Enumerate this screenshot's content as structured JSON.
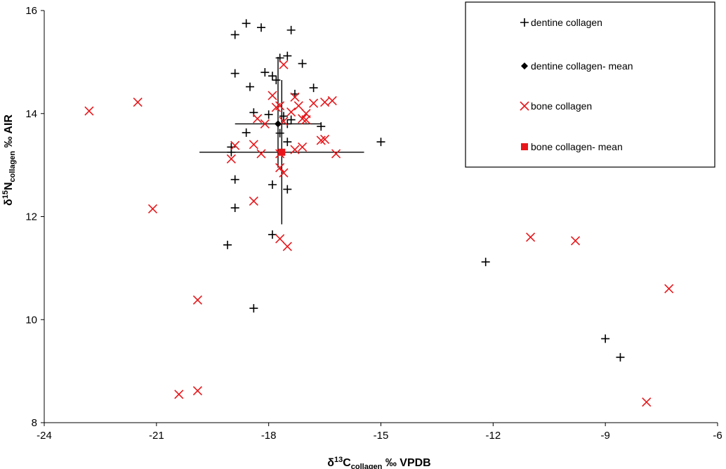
{
  "chart_data": {
    "type": "scatter",
    "title": "",
    "xlabel": {
      "prefix": "δ",
      "sup": "13",
      "main": "C",
      "sub": "collagen",
      "suffix": " ‰ VPDB"
    },
    "ylabel": {
      "prefix": "δ",
      "sup": "15",
      "main": "N",
      "sub": "collagen",
      "suffix": " ‰ AIR"
    },
    "xlim": [
      -24,
      -6
    ],
    "ylim": [
      8,
      16
    ],
    "xticks": [
      "-24",
      "-21",
      "-18",
      "-15",
      "-12",
      "-9",
      "-6"
    ],
    "yticks": [
      "8",
      "10",
      "12",
      "14",
      "16"
    ],
    "grid": false,
    "legend_position": "top-right",
    "series": [
      {
        "name": "dentine collagen",
        "marker": "plus",
        "color": "#000000",
        "points": [
          [
            -18.6,
            15.75
          ],
          [
            -18.2,
            15.67
          ],
          [
            -18.9,
            15.53
          ],
          [
            -17.4,
            15.62
          ],
          [
            -17.5,
            15.12
          ],
          [
            -17.7,
            15.08
          ],
          [
            -17.1,
            14.97
          ],
          [
            -18.9,
            14.78
          ],
          [
            -18.1,
            14.8
          ],
          [
            -17.9,
            14.73
          ],
          [
            -17.8,
            14.65
          ],
          [
            -18.5,
            14.52
          ],
          [
            -16.8,
            14.5
          ],
          [
            -17.3,
            14.38
          ],
          [
            -18.4,
            14.02
          ],
          [
            -18.0,
            13.98
          ],
          [
            -17.6,
            13.95
          ],
          [
            -17.4,
            13.88
          ],
          [
            -18.6,
            13.63
          ],
          [
            -17.5,
            13.8
          ],
          [
            -16.6,
            13.75
          ],
          [
            -17.7,
            13.62
          ],
          [
            -19.0,
            13.35
          ],
          [
            -17.5,
            13.45
          ],
          [
            -19.0,
            13.25
          ],
          [
            -15.0,
            13.45
          ],
          [
            -18.9,
            12.72
          ],
          [
            -17.9,
            12.62
          ],
          [
            -17.5,
            12.53
          ],
          [
            -18.9,
            12.17
          ],
          [
            -17.9,
            11.65
          ],
          [
            -19.1,
            11.45
          ],
          [
            -18.4,
            10.22
          ],
          [
            -12.2,
            11.12
          ],
          [
            -9.0,
            9.63
          ],
          [
            -8.6,
            9.27
          ]
        ]
      },
      {
        "name": "dentine collagen- mean",
        "marker": "diamond",
        "color": "#000000",
        "points": [
          [
            -17.75,
            13.8
          ]
        ],
        "error_x": [
          1.15,
          1.15
        ],
        "error_y": [
          0.85,
          1.3
        ]
      },
      {
        "name": "bone collagen",
        "marker": "x",
        "color": "#e8161a",
        "points": [
          [
            -22.8,
            14.05
          ],
          [
            -21.5,
            14.22
          ],
          [
            -21.1,
            12.15
          ],
          [
            -19.9,
            10.38
          ],
          [
            -20.4,
            8.55
          ],
          [
            -19.9,
            8.62
          ],
          [
            -17.6,
            14.95
          ],
          [
            -17.9,
            14.35
          ],
          [
            -17.8,
            14.12
          ],
          [
            -17.7,
            14.15
          ],
          [
            -17.3,
            14.32
          ],
          [
            -17.2,
            14.15
          ],
          [
            -17.0,
            14.0
          ],
          [
            -16.8,
            14.2
          ],
          [
            -16.5,
            14.22
          ],
          [
            -16.3,
            14.25
          ],
          [
            -17.4,
            14.03
          ],
          [
            -17.1,
            13.9
          ],
          [
            -17.6,
            13.85
          ],
          [
            -18.1,
            13.8
          ],
          [
            -18.3,
            13.9
          ],
          [
            -17.0,
            13.88
          ],
          [
            -16.6,
            13.48
          ],
          [
            -16.5,
            13.5
          ],
          [
            -17.1,
            13.35
          ],
          [
            -17.3,
            13.3
          ],
          [
            -18.9,
            13.38
          ],
          [
            -19.0,
            13.12
          ],
          [
            -18.4,
            13.4
          ],
          [
            -18.2,
            13.22
          ],
          [
            -16.2,
            13.22
          ],
          [
            -17.7,
            13.22
          ],
          [
            -17.7,
            12.95
          ],
          [
            -17.6,
            12.85
          ],
          [
            -18.4,
            12.3
          ],
          [
            -17.7,
            11.57
          ],
          [
            -17.5,
            11.42
          ],
          [
            -11.0,
            11.6
          ],
          [
            -9.8,
            11.53
          ],
          [
            -7.3,
            10.6
          ],
          [
            -7.9,
            8.4
          ]
        ]
      },
      {
        "name": "bone collagen- mean",
        "marker": "square",
        "color": "#e8161a",
        "points": [
          [
            -17.65,
            13.25
          ]
        ],
        "error_x": [
          2.2,
          2.2
        ],
        "error_y": [
          1.4,
          1.4
        ]
      }
    ]
  }
}
